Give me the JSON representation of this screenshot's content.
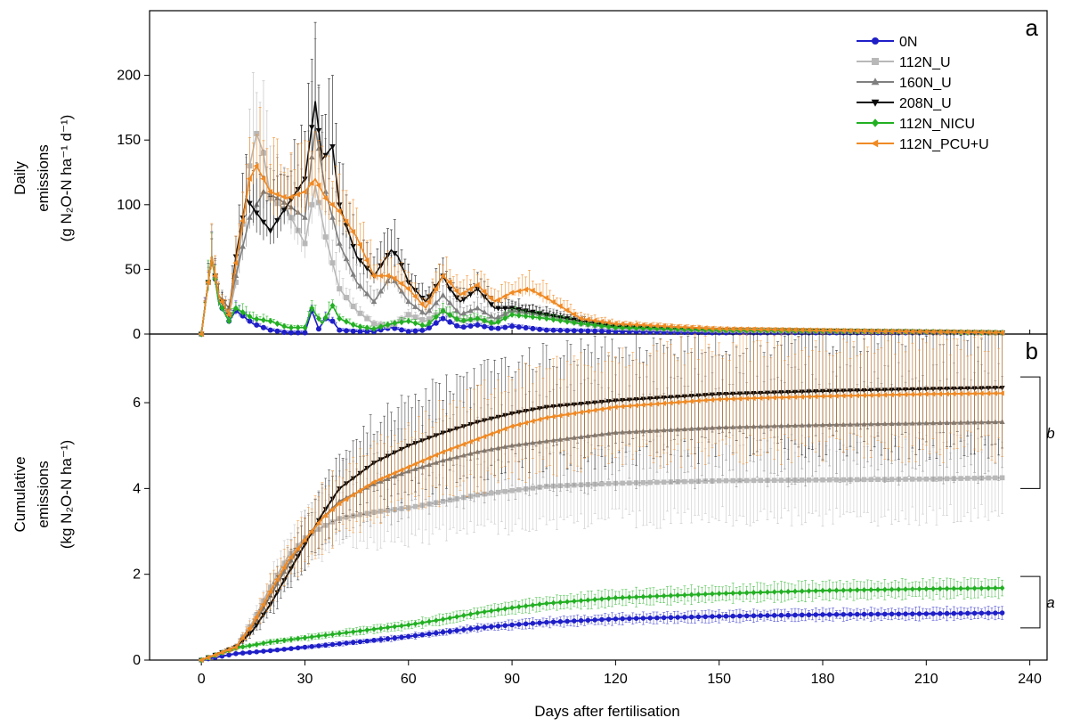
{
  "colors": {
    "0N": "#1f1fc8",
    "112N_U": "#b8b8b8",
    "160N_U": "#7f7f7f",
    "208N_U": "#0a0a0a",
    "112N_NICU": "#22b022",
    "112N_PCU+U": "#f08a24"
  },
  "chart_data": [
    {
      "type": "line",
      "panel_letter": "a",
      "ylabel": [
        "Daily",
        "emissions",
        "(g N₂O-N ha⁻¹ d⁻¹)"
      ],
      "xlim": [
        -15,
        245
      ],
      "ylim": [
        0,
        250
      ],
      "yticks": [
        0,
        50,
        100,
        150,
        200
      ],
      "legend_placement": "top-right",
      "series": [
        {
          "name": "0N",
          "marker": "circle",
          "x": [
            0,
            3,
            5,
            8,
            10,
            15,
            20,
            25,
            30,
            32,
            34,
            36,
            38,
            40,
            45,
            50,
            55,
            60,
            65,
            70,
            75,
            80,
            85,
            90,
            100,
            120,
            150,
            200,
            232
          ],
          "y": [
            0,
            60,
            25,
            10,
            18,
            8,
            3,
            1,
            1,
            18,
            4,
            12,
            10,
            3,
            2,
            2,
            5,
            2,
            3,
            12,
            5,
            7,
            4,
            6,
            3,
            2,
            1,
            1,
            1
          ]
        },
        {
          "name": "112N_U",
          "marker": "square",
          "x": [
            0,
            3,
            5,
            8,
            10,
            14,
            16,
            18,
            20,
            25,
            30,
            33,
            36,
            40,
            45,
            50,
            55,
            60,
            65,
            70,
            75,
            80,
            85,
            90,
            100,
            110,
            120,
            150,
            200,
            232
          ],
          "y": [
            0,
            60,
            30,
            15,
            40,
            130,
            155,
            140,
            105,
            95,
            70,
            115,
            75,
            35,
            18,
            8,
            6,
            15,
            10,
            18,
            10,
            12,
            8,
            20,
            15,
            8,
            5,
            3,
            2,
            1
          ]
        },
        {
          "name": "160N_U",
          "marker": "triangle-up",
          "x": [
            0,
            3,
            5,
            8,
            10,
            14,
            18,
            22,
            25,
            30,
            33,
            36,
            40,
            45,
            50,
            55,
            60,
            65,
            70,
            75,
            80,
            85,
            90,
            100,
            110,
            120,
            150,
            200,
            232
          ],
          "y": [
            0,
            60,
            30,
            20,
            45,
            90,
            110,
            105,
            100,
            90,
            160,
            110,
            70,
            40,
            25,
            45,
            25,
            15,
            30,
            15,
            20,
            12,
            18,
            15,
            10,
            6,
            3,
            2,
            1
          ]
        },
        {
          "name": "208N_U",
          "marker": "triangle-down",
          "x": [
            0,
            3,
            5,
            8,
            10,
            13,
            17,
            20,
            25,
            30,
            33,
            35,
            38,
            40,
            45,
            50,
            55,
            57,
            60,
            65,
            70,
            72,
            75,
            80,
            85,
            90,
            100,
            110,
            120,
            150,
            200,
            232
          ],
          "y": [
            0,
            60,
            30,
            15,
            60,
            105,
            90,
            80,
            100,
            120,
            180,
            135,
            145,
            100,
            60,
            45,
            65,
            60,
            40,
            25,
            45,
            35,
            25,
            35,
            20,
            20,
            15,
            10,
            6,
            3,
            2,
            1
          ]
        },
        {
          "name": "112N_NICU",
          "marker": "diamond",
          "x": [
            0,
            3,
            5,
            8,
            10,
            15,
            20,
            25,
            30,
            32,
            35,
            38,
            40,
            45,
            50,
            55,
            60,
            65,
            70,
            75,
            80,
            85,
            90,
            100,
            110,
            120,
            150,
            200,
            232
          ],
          "y": [
            0,
            60,
            25,
            10,
            20,
            12,
            10,
            5,
            5,
            20,
            8,
            22,
            12,
            6,
            4,
            8,
            10,
            6,
            18,
            10,
            12,
            8,
            15,
            12,
            8,
            5,
            3,
            2,
            1
          ]
        },
        {
          "name": "112N_PCU+U",
          "marker": "triangle-left",
          "x": [
            0,
            3,
            5,
            8,
            10,
            14,
            16,
            20,
            25,
            30,
            33,
            36,
            40,
            45,
            50,
            55,
            60,
            65,
            70,
            72,
            75,
            80,
            85,
            90,
            95,
            100,
            110,
            120,
            150,
            200,
            232
          ],
          "y": [
            0,
            60,
            30,
            15,
            55,
            120,
            130,
            110,
            105,
            110,
            120,
            105,
            95,
            75,
            45,
            45,
            35,
            20,
            45,
            40,
            30,
            38,
            25,
            32,
            35,
            28,
            12,
            8,
            4,
            2,
            1
          ]
        }
      ]
    },
    {
      "type": "line",
      "panel_letter": "b",
      "ylabel": [
        "Cumulative",
        "emissions",
        "(kg N₂O-N ha⁻¹)"
      ],
      "xlabel": "Days after fertilisation",
      "xlim": [
        -15,
        245
      ],
      "ylim": [
        0,
        7.6
      ],
      "xticks": [
        0,
        30,
        60,
        90,
        120,
        150,
        180,
        210,
        240
      ],
      "yticks": [
        0,
        2,
        4,
        6
      ],
      "group_letters": [
        {
          "text": "b",
          "range": [
            4.0,
            6.6
          ]
        },
        {
          "text": "a",
          "range": [
            0.75,
            1.95
          ]
        }
      ],
      "series": [
        {
          "name": "0N",
          "x": [
            0,
            10,
            20,
            30,
            40,
            50,
            60,
            70,
            80,
            90,
            100,
            120,
            150,
            180,
            210,
            232
          ],
          "y": [
            0,
            0.15,
            0.22,
            0.3,
            0.38,
            0.46,
            0.55,
            0.65,
            0.75,
            0.82,
            0.88,
            0.96,
            1.02,
            1.06,
            1.08,
            1.1
          ]
        },
        {
          "name": "112N_U",
          "x": [
            0,
            10,
            15,
            20,
            25,
            30,
            35,
            40,
            50,
            60,
            70,
            80,
            90,
            100,
            120,
            150,
            180,
            210,
            232
          ],
          "y": [
            0,
            0.3,
            0.9,
            1.7,
            2.4,
            2.85,
            3.1,
            3.3,
            3.45,
            3.55,
            3.7,
            3.85,
            3.95,
            4.05,
            4.12,
            4.18,
            4.2,
            4.22,
            4.25
          ]
        },
        {
          "name": "160N_U",
          "x": [
            0,
            10,
            15,
            20,
            25,
            30,
            35,
            40,
            50,
            60,
            70,
            80,
            90,
            100,
            120,
            150,
            180,
            210,
            232
          ],
          "y": [
            0,
            0.3,
            0.8,
            1.5,
            2.2,
            2.8,
            3.3,
            3.7,
            4.1,
            4.4,
            4.65,
            4.85,
            5.0,
            5.1,
            5.3,
            5.42,
            5.48,
            5.52,
            5.55
          ]
        },
        {
          "name": "208N_U",
          "x": [
            0,
            10,
            15,
            20,
            25,
            30,
            35,
            40,
            50,
            60,
            70,
            80,
            90,
            100,
            120,
            150,
            180,
            210,
            232
          ],
          "y": [
            0,
            0.3,
            0.7,
            1.3,
            2.0,
            2.7,
            3.4,
            4.0,
            4.6,
            5.0,
            5.3,
            5.55,
            5.75,
            5.9,
            6.05,
            6.2,
            6.27,
            6.32,
            6.35
          ]
        },
        {
          "name": "112N_NICU",
          "x": [
            0,
            10,
            20,
            30,
            40,
            50,
            60,
            70,
            80,
            90,
            100,
            120,
            150,
            180,
            210,
            232
          ],
          "y": [
            0,
            0.28,
            0.42,
            0.52,
            0.62,
            0.72,
            0.82,
            0.95,
            1.1,
            1.22,
            1.32,
            1.45,
            1.55,
            1.62,
            1.66,
            1.68
          ]
        },
        {
          "name": "112N_PCU+U",
          "x": [
            0,
            10,
            15,
            20,
            25,
            30,
            35,
            40,
            50,
            60,
            70,
            80,
            90,
            100,
            120,
            150,
            180,
            210,
            232
          ],
          "y": [
            0,
            0.3,
            0.85,
            1.6,
            2.3,
            2.8,
            3.3,
            3.65,
            4.15,
            4.5,
            4.85,
            5.15,
            5.45,
            5.65,
            5.9,
            6.08,
            6.15,
            6.2,
            6.22
          ]
        }
      ]
    }
  ]
}
